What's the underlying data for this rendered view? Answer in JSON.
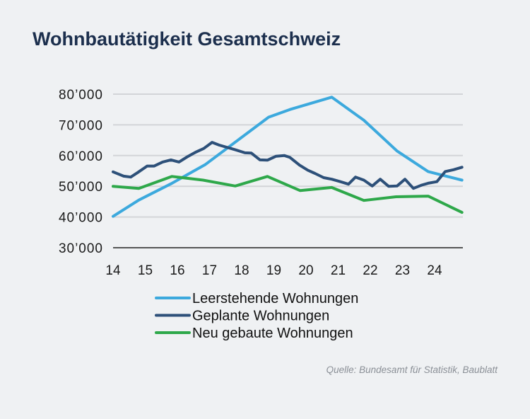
{
  "chart_data": {
    "type": "line",
    "title": "Wohnbautätigkeit Gesamtschweiz",
    "xlabel": "",
    "ylabel": "",
    "xlim": [
      14,
      24.87
    ],
    "ylim": [
      30000,
      80000
    ],
    "x_ticks": [
      "14",
      "15",
      "16",
      "17",
      "18",
      "19",
      "20",
      "21",
      "22",
      "23",
      "24"
    ],
    "y_ticks": [
      "30’000",
      "40’000",
      "50’000",
      "60’000",
      "70’000",
      "80’000"
    ],
    "grid": "horizontal",
    "legend_position": "bottom",
    "series": [
      {
        "name": "Leerstehende Wohnungen",
        "color": "#3ca9dd",
        "x": [
          14.0,
          14.8,
          15.8,
          16.86,
          18.84,
          19.5,
          20.8,
          21.8,
          22.83,
          23.8,
          24.85
        ],
        "y": [
          40200,
          45500,
          50800,
          57000,
          72500,
          75000,
          79000,
          71500,
          61500,
          54800,
          52000
        ]
      },
      {
        "name": "Geplante Wohnungen",
        "color": "#2d5079",
        "x": [
          14.0,
          14.33,
          14.55,
          14.77,
          15.06,
          15.28,
          15.54,
          15.8,
          16.05,
          16.31,
          16.57,
          16.82,
          17.08,
          17.3,
          17.8,
          18.1,
          18.3,
          18.57,
          18.8,
          19.07,
          19.33,
          19.5,
          19.8,
          20.06,
          20.28,
          20.55,
          20.8,
          21.07,
          21.32,
          21.54,
          21.8,
          22.06,
          22.31,
          22.57,
          22.83,
          23.08,
          23.34,
          23.6,
          23.8,
          24.07,
          24.33,
          24.59,
          24.85
        ],
        "y": [
          54700,
          53300,
          53000,
          54500,
          56600,
          56600,
          57900,
          58600,
          57900,
          59600,
          61100,
          62300,
          64300,
          63400,
          61900,
          60900,
          60800,
          58600,
          58500,
          59800,
          60000,
          59400,
          56900,
          55200,
          54200,
          52800,
          52300,
          51500,
          50700,
          53000,
          52000,
          50100,
          52300,
          50000,
          50100,
          52300,
          49300,
          50400,
          51000,
          51500,
          54800,
          55400,
          56200
        ]
      },
      {
        "name": "Neu gebaute Wohnungen",
        "color": "#2ea84a",
        "x": [
          14.0,
          14.8,
          15.83,
          16.8,
          17.8,
          18.8,
          19.82,
          20.8,
          21.8,
          22.8,
          23.8,
          24.85
        ],
        "y": [
          50000,
          49300,
          53200,
          52000,
          50100,
          53200,
          48600,
          49600,
          45400,
          46600,
          46800,
          41500
        ]
      }
    ]
  },
  "source": "Quelle: Bundesamt für Statistik, Baublatt"
}
